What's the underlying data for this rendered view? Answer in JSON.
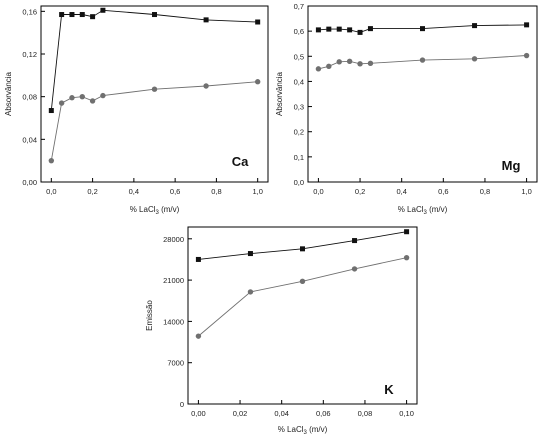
{
  "chart_data": [
    {
      "type": "line",
      "xlabel": "% LaCl",
      "xlabel_sub": "3",
      "xlabel_suffix": " (m/v)",
      "ylabel": "Absorvância",
      "element_label": "Ca",
      "xlim": [
        -0.05,
        1.05
      ],
      "ylim": [
        0,
        0.165
      ],
      "xticks": [
        0.0,
        0.2,
        0.4,
        0.6,
        0.8,
        1.0
      ],
      "xtick_labels": [
        "0,0",
        "0,2",
        "0,4",
        "0,6",
        "0,8",
        "1,0"
      ],
      "yticks": [
        0,
        0.04,
        0.08,
        0.12,
        0.16
      ],
      "ytick_labels": [
        "0,00",
        "0,04",
        "0,08",
        "0,12",
        "0,16"
      ],
      "series": [
        {
          "marker": "square",
          "color": "#111111",
          "x": [
            0,
            0.05,
            0.1,
            0.15,
            0.2,
            0.25,
            0.5,
            0.75,
            1.0
          ],
          "y": [
            0.067,
            0.157,
            0.157,
            0.157,
            0.155,
            0.161,
            0.157,
            0.152,
            0.15
          ]
        },
        {
          "marker": "circle",
          "color": "#707070",
          "x": [
            0,
            0.05,
            0.1,
            0.15,
            0.2,
            0.25,
            0.5,
            0.75,
            1.0
          ],
          "y": [
            0.02,
            0.074,
            0.079,
            0.08,
            0.076,
            0.081,
            0.087,
            0.09,
            0.094
          ]
        }
      ]
    },
    {
      "type": "line",
      "xlabel": "% LaCl",
      "xlabel_sub": "3",
      "xlabel_suffix": " (m/v)",
      "ylabel": "Absorvância",
      "element_label": "Mg",
      "xlim": [
        -0.05,
        1.05
      ],
      "ylim": [
        0,
        0.7
      ],
      "xticks": [
        0.0,
        0.2,
        0.4,
        0.6,
        0.8,
        1.0
      ],
      "xtick_labels": [
        "0,0",
        "0,2",
        "0,4",
        "0,6",
        "0,8",
        "1,0"
      ],
      "yticks": [
        0,
        0.1,
        0.2,
        0.3,
        0.4,
        0.5,
        0.6,
        0.7
      ],
      "ytick_labels": [
        "0,0",
        "0,1",
        "0,2",
        "0,3",
        "0,4",
        "0,5",
        "0,6",
        "0,7"
      ],
      "series": [
        {
          "marker": "square",
          "color": "#111111",
          "x": [
            0,
            0.05,
            0.1,
            0.15,
            0.2,
            0.25,
            0.5,
            0.75,
            1.0
          ],
          "y": [
            0.605,
            0.608,
            0.608,
            0.605,
            0.595,
            0.61,
            0.61,
            0.622,
            0.625
          ]
        },
        {
          "marker": "circle",
          "color": "#707070",
          "x": [
            0,
            0.05,
            0.1,
            0.15,
            0.2,
            0.25,
            0.5,
            0.75,
            1.0
          ],
          "y": [
            0.45,
            0.46,
            0.478,
            0.48,
            0.47,
            0.472,
            0.485,
            0.49,
            0.503
          ]
        }
      ]
    },
    {
      "type": "line",
      "xlabel": "% LaCl",
      "xlabel_sub": "3",
      "xlabel_suffix": " (m/v)",
      "ylabel": "Emissão",
      "element_label": "K",
      "xlim": [
        -0.005,
        0.105
      ],
      "ylim": [
        0,
        30000
      ],
      "xticks": [
        0.0,
        0.02,
        0.04,
        0.06,
        0.08,
        0.1
      ],
      "xtick_labels": [
        "0,00",
        "0,02",
        "0,04",
        "0,06",
        "0,08",
        "0,10"
      ],
      "yticks": [
        0,
        7000,
        14000,
        21000,
        28000
      ],
      "ytick_labels": [
        "0",
        "7000",
        "14000",
        "21000",
        "28000"
      ],
      "series": [
        {
          "marker": "square",
          "color": "#111111",
          "x": [
            0,
            0.025,
            0.05,
            0.075,
            0.1
          ],
          "y": [
            24500,
            25500,
            26300,
            27700,
            29200
          ]
        },
        {
          "marker": "circle",
          "color": "#707070",
          "x": [
            0,
            0.025,
            0.05,
            0.075,
            0.1
          ],
          "y": [
            11500,
            19000,
            20800,
            22900,
            24800
          ]
        }
      ]
    }
  ]
}
